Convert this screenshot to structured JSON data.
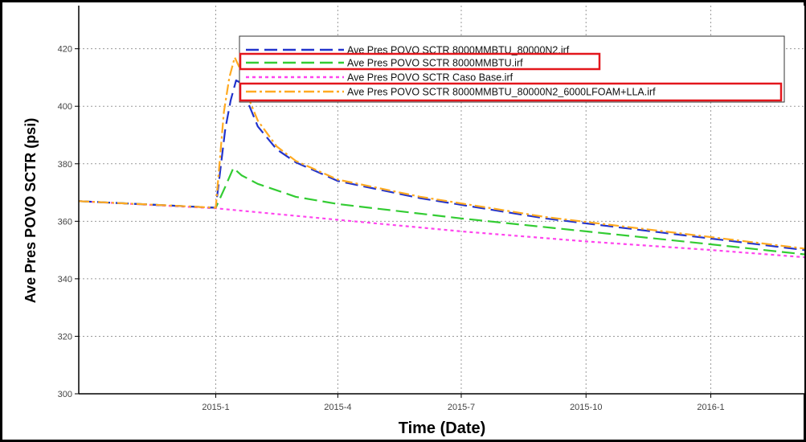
{
  "chart_data": {
    "type": "line",
    "title": "",
    "xlabel": "Time (Date)",
    "ylabel": "Ave Pres POVO SCTR (psi)",
    "ylim": [
      300,
      435
    ],
    "xlim": [
      "2014-09-22",
      "2016-03-10"
    ],
    "y_ticks": [
      300,
      320,
      340,
      360,
      380,
      400,
      420
    ],
    "x_ticks": [
      {
        "date": "2015-01-01",
        "label": "2015-1"
      },
      {
        "date": "2015-04-01",
        "label": "2015-4"
      },
      {
        "date": "2015-07-01",
        "label": "2015-7"
      },
      {
        "date": "2015-10-01",
        "label": "2015-10"
      },
      {
        "date": "2016-01-01",
        "label": "2016-1"
      }
    ],
    "grid": true,
    "legend_position": "top-right",
    "series": [
      {
        "name": "Ave Pres POVO SCTR 8000MMBTU_80000N2.irf",
        "color": "#2233cc",
        "dash": "long-dash",
        "highlighted": false,
        "x": [
          "2014-09-22",
          "2015-01-01",
          "2015-01-08",
          "2015-01-12",
          "2015-01-16",
          "2015-01-20",
          "2015-01-25",
          "2015-02-01",
          "2015-02-15",
          "2015-03-01",
          "2015-04-01",
          "2015-06-01",
          "2015-09-01",
          "2016-01-01",
          "2016-03-10"
        ],
        "values": [
          367,
          364.7,
          392,
          402,
          409,
          408,
          401,
          393,
          385,
          380.5,
          374,
          368,
          361,
          354,
          350
        ]
      },
      {
        "name": "Ave Pres POVO SCTR 8000MMBTU.irf",
        "color": "#33cc33",
        "dash": "long-dash",
        "highlighted": true,
        "x": [
          "2014-09-22",
          "2015-01-01",
          "2015-01-08",
          "2015-01-14",
          "2015-01-20",
          "2015-02-01",
          "2015-03-01",
          "2015-04-01",
          "2015-07-01",
          "2015-10-01",
          "2016-01-01",
          "2016-03-10"
        ],
        "values": [
          367,
          364.7,
          372,
          378.5,
          376,
          373,
          368.5,
          366,
          361,
          356.5,
          352,
          348.5
        ]
      },
      {
        "name": "Ave Pres POVO SCTR Caso Base.irf",
        "color": "#ff44ee",
        "dash": "dotted",
        "highlighted": false,
        "x": [
          "2014-09-22",
          "2015-01-01",
          "2015-04-01",
          "2015-07-01",
          "2015-10-01",
          "2016-01-01",
          "2016-03-10"
        ],
        "values": [
          367,
          364.5,
          360.5,
          356.5,
          353,
          350,
          347.5
        ]
      },
      {
        "name": "Ave Pres POVO SCTR 8000MMBTU_80000N2_6000LFOAM+LLA.irf",
        "color": "#ffaa22",
        "dash": "dash-dot",
        "highlighted": true,
        "x": [
          "2014-09-22",
          "2015-01-01",
          "2015-01-07",
          "2015-01-11",
          "2015-01-15",
          "2015-01-20",
          "2015-01-25",
          "2015-02-01",
          "2015-02-15",
          "2015-03-01",
          "2015-04-01",
          "2015-06-01",
          "2015-09-01",
          "2016-01-01",
          "2016-03-10"
        ],
        "values": [
          367,
          364.7,
          398,
          410,
          417,
          412,
          403,
          395,
          386,
          381,
          374.5,
          368.5,
          361.5,
          354.5,
          350.5
        ]
      }
    ]
  }
}
